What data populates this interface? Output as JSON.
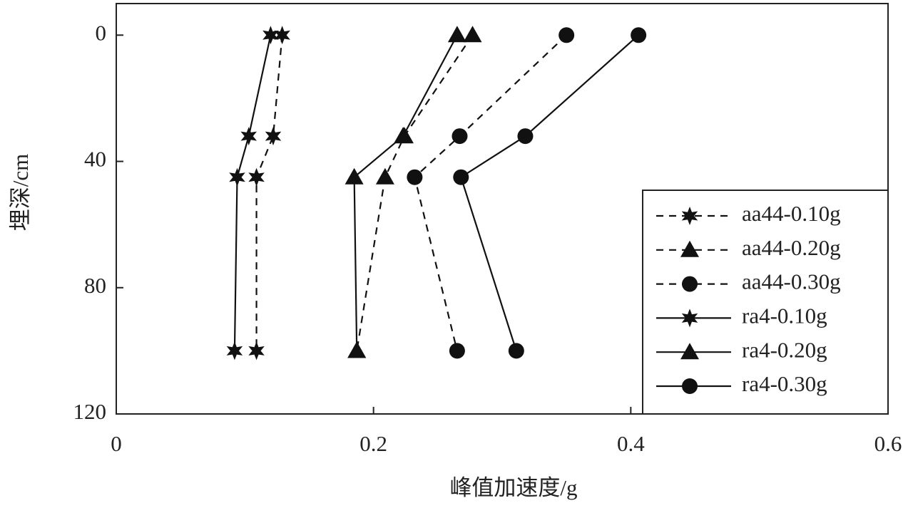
{
  "chart_data": {
    "type": "line",
    "x_label": "峰值加速度/g",
    "y_label": "埋深/cm",
    "y": [
      0,
      32,
      45,
      100
    ],
    "xlim": [
      0,
      0.6
    ],
    "xticks": [
      0,
      0.2,
      0.4,
      0.6
    ],
    "ylim": [
      -10,
      120
    ],
    "yticks": [
      0,
      40,
      80,
      120
    ],
    "y_inverted": true,
    "legend": "lower right",
    "series": [
      {
        "name": "aa44-0.10g",
        "color": "#111111",
        "dashed": true,
        "marker": "star",
        "values": [
          0.129,
          0.122,
          0.109,
          0.109
        ]
      },
      {
        "name": "aa44-0.20g",
        "color": "#111111",
        "dashed": true,
        "marker": "triangle",
        "values": [
          0.277,
          0.224,
          0.209,
          0.187
        ]
      },
      {
        "name": "aa44-0.30g",
        "color": "#111111",
        "dashed": true,
        "marker": "circle",
        "values": [
          0.35,
          0.267,
          0.232,
          0.265
        ]
      },
      {
        "name": "ra4-0.10g",
        "color": "#111111",
        "dashed": false,
        "marker": "star",
        "values": [
          0.12,
          0.103,
          0.094,
          0.092
        ]
      },
      {
        "name": "ra4-0.20g",
        "color": "#111111",
        "dashed": false,
        "marker": "triangle",
        "values": [
          0.265,
          0.223,
          0.185,
          0.187
        ]
      },
      {
        "name": "ra4-0.30g",
        "color": "#111111",
        "dashed": false,
        "marker": "circle",
        "values": [
          0.406,
          0.318,
          0.268,
          0.311
        ]
      }
    ]
  }
}
